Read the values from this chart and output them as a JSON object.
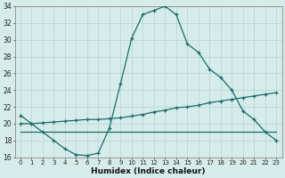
{
  "xlabel": "Humidex (Indice chaleur)",
  "xlim": [
    -0.5,
    23.5
  ],
  "ylim": [
    16,
    34
  ],
  "yticks": [
    16,
    18,
    20,
    22,
    24,
    26,
    28,
    30,
    32,
    34
  ],
  "xticks": [
    0,
    1,
    2,
    3,
    4,
    5,
    6,
    7,
    8,
    9,
    10,
    11,
    12,
    13,
    14,
    15,
    16,
    17,
    18,
    19,
    20,
    21,
    22,
    23
  ],
  "bg_color": "#d6ecea",
  "grid_color": "#b8d8d4",
  "line_color": "#1a6b6b",
  "line1_markers": true,
  "line2_markers": false,
  "line3_markers": true,
  "line1": {
    "x": [
      0,
      1,
      2,
      3,
      4,
      5,
      6,
      7,
      8,
      9,
      10,
      11,
      12,
      13,
      14,
      15,
      16,
      17,
      18,
      19,
      20,
      21,
      22,
      23
    ],
    "y": [
      21,
      20,
      19,
      18,
      17,
      16.3,
      16.2,
      16.5,
      19.5,
      24.8,
      30.2,
      33,
      33.5,
      34.0,
      33,
      29.5,
      28.5,
      26.5,
      25.5,
      24.0,
      21.5,
      20.5,
      19.0,
      18.0
    ]
  },
  "line2": {
    "x": [
      0,
      23
    ],
    "y": [
      19.0,
      19.0
    ]
  },
  "line3": {
    "x": [
      0,
      1,
      2,
      3,
      4,
      5,
      6,
      7,
      8,
      9,
      10,
      11,
      12,
      13,
      14,
      15,
      16,
      17,
      18,
      19,
      20,
      21,
      22,
      23
    ],
    "y": [
      20.0,
      20.0,
      20.1,
      20.2,
      20.3,
      20.4,
      20.5,
      20.5,
      20.6,
      20.7,
      20.9,
      21.1,
      21.4,
      21.6,
      21.9,
      22.0,
      22.2,
      22.5,
      22.7,
      22.9,
      23.1,
      23.3,
      23.5,
      23.7
    ]
  }
}
